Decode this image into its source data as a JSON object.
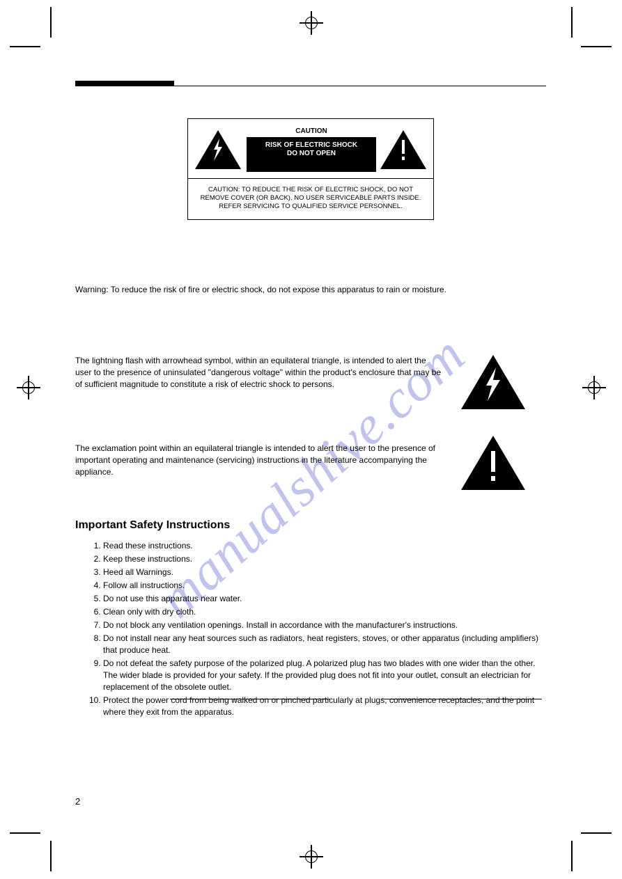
{
  "page_number": "2",
  "caution": {
    "label": "CAUTION",
    "risk_line_1": "RISK OF ELECTRIC SHOCK",
    "risk_line_2": "DO NOT OPEN",
    "bottom": "CAUTION: TO REDUCE THE RISK OF ELECTRIC SHOCK, DO NOT REMOVE COVER (OR BACK). NO USER SERVICEABLE PARTS INSIDE. REFER SERVICING TO QUALIFIED SERVICE PERSONNEL."
  },
  "warning": "Warning: To reduce the risk of fire or electric shock, do not expose this apparatus to rain or moisture.",
  "lightning_para": "The lightning flash with arrowhead symbol, within an equilateral triangle, is intended to alert the user to the presence of uninsulated \"dangerous voltage\" within the product's enclosure that may be of sufficient magnitude to constitute a risk of electric shock to persons.",
  "exclamation_para": "The exclamation point within an equilateral triangle is intended to alert the user to the presence of important operating and maintenance (servicing) instructions in the literature accompanying the appliance.",
  "safety_heading": "Important Safety Instructions",
  "safety_items": [
    "Read these instructions.",
    "Keep these instructions.",
    "Heed all Warnings.",
    "Follow all instructions.",
    "Do not use this apparatus near water.",
    "Clean only with dry cloth.",
    "Do not block any ventilation openings. Install in accordance with the manufacturer's instructions.",
    "Do not install near any heat sources such as radiators, heat registers, stoves, or other apparatus (including amplifiers) that produce heat.",
    "Do not defeat the safety purpose of the polarized plug. A polarized plug has two blades with one wider than the other. The wider blade is provided for your safety. If the provided plug does not fit into your outlet, consult an electrician for replacement of the obsolete outlet.",
    "Protect the power cord from being walked on or pinched particularly at plugs, convenience receptacles, and the point where they exit from the apparatus."
  ],
  "watermark_text": "manualshive.com",
  "colors": {
    "watermark": "#aeb0e6",
    "black": "#000000",
    "white": "#ffffff"
  }
}
